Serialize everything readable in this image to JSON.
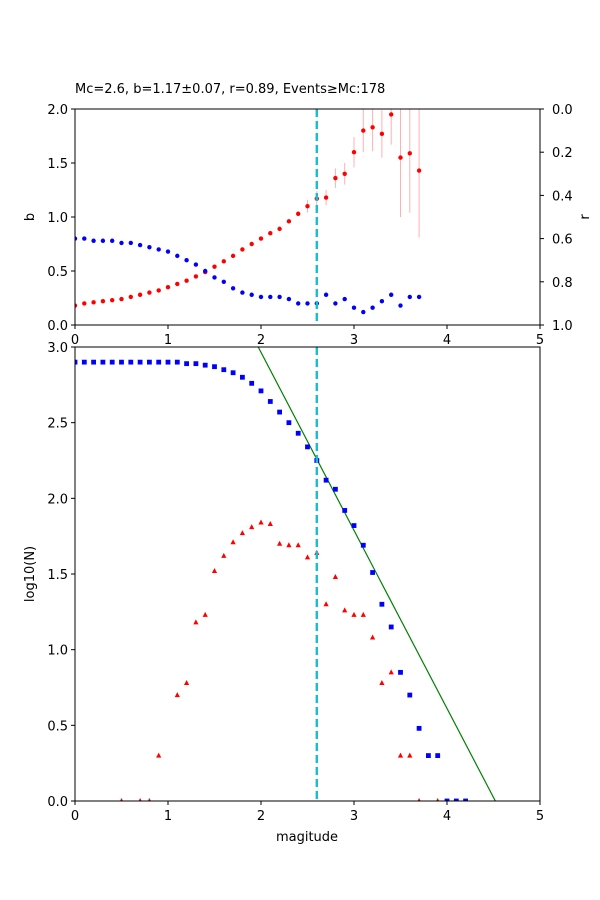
{
  "chart_data": [
    {
      "type": "scatter",
      "title": "Mc=2.6, b=1.17±0.07, r=0.89, Events≥Mc:178",
      "xlabel": "",
      "ylabel": "b",
      "ylabel_right": "r",
      "xlim": [
        0,
        5
      ],
      "ylim": [
        0,
        2
      ],
      "ylim_right": [
        1,
        0
      ],
      "x_ticks": [
        "0",
        "1",
        "2",
        "3",
        "4",
        "5"
      ],
      "y_ticks": [
        "0.0",
        "0.5",
        "1.0",
        "1.5",
        "2.0"
      ],
      "y_right_ticks": [
        "0.0",
        "0.2",
        "0.4",
        "0.6",
        "0.8",
        "1.0"
      ],
      "grid": false,
      "mc_line": 2.6,
      "colors": {
        "b_series": "#ff0000",
        "r_series": "#0000ff",
        "errorbar": "#ffb0b0",
        "mc_line": "#17becf"
      },
      "series": [
        {
          "axis": "left",
          "marker": "circle",
          "color": "#ff0000",
          "points": [
            [
              0.0,
              0.18
            ],
            [
              0.1,
              0.2
            ],
            [
              0.2,
              0.21
            ],
            [
              0.3,
              0.22
            ],
            [
              0.4,
              0.23
            ],
            [
              0.5,
              0.24
            ],
            [
              0.6,
              0.26
            ],
            [
              0.7,
              0.28
            ],
            [
              0.8,
              0.3
            ],
            [
              0.9,
              0.32
            ],
            [
              1.0,
              0.35
            ],
            [
              1.1,
              0.38
            ],
            [
              1.2,
              0.41
            ],
            [
              1.3,
              0.45
            ],
            [
              1.4,
              0.49
            ],
            [
              1.5,
              0.54
            ],
            [
              1.6,
              0.59
            ],
            [
              1.7,
              0.64
            ],
            [
              1.8,
              0.7
            ],
            [
              1.9,
              0.75
            ],
            [
              2.0,
              0.8
            ],
            [
              2.1,
              0.85
            ],
            [
              2.2,
              0.89
            ],
            [
              2.3,
              0.96
            ],
            [
              2.4,
              1.03
            ],
            [
              2.5,
              1.1
            ],
            [
              2.6,
              1.17
            ],
            [
              2.7,
              1.18
            ],
            [
              2.8,
              1.36
            ],
            [
              2.9,
              1.4
            ],
            [
              3.0,
              1.6
            ],
            [
              3.1,
              1.8
            ],
            [
              3.2,
              1.83
            ],
            [
              3.3,
              1.77
            ],
            [
              3.4,
              1.95
            ],
            [
              3.5,
              1.55
            ],
            [
              3.6,
              1.59
            ],
            [
              3.7,
              1.43
            ]
          ],
          "errors": [
            [
              2.5,
              0.06
            ],
            [
              2.6,
              0.07
            ],
            [
              2.7,
              0.07
            ],
            [
              2.8,
              0.09
            ],
            [
              2.9,
              0.1
            ],
            [
              3.0,
              0.14
            ],
            [
              3.1,
              0.2
            ],
            [
              3.2,
              0.22
            ],
            [
              3.3,
              0.22
            ],
            [
              3.4,
              0.28
            ],
            [
              3.5,
              0.55
            ],
            [
              3.6,
              0.55
            ],
            [
              3.7,
              0.62
            ]
          ]
        },
        {
          "axis": "right",
          "marker": "circle",
          "color": "#0000ff",
          "points": [
            [
              0.0,
              0.6
            ],
            [
              0.1,
              0.6
            ],
            [
              0.2,
              0.61
            ],
            [
              0.3,
              0.61
            ],
            [
              0.4,
              0.61
            ],
            [
              0.5,
              0.62
            ],
            [
              0.6,
              0.62
            ],
            [
              0.7,
              0.63
            ],
            [
              0.8,
              0.64
            ],
            [
              0.9,
              0.65
            ],
            [
              1.0,
              0.66
            ],
            [
              1.1,
              0.68
            ],
            [
              1.2,
              0.7
            ],
            [
              1.3,
              0.72
            ],
            [
              1.4,
              0.75
            ],
            [
              1.5,
              0.78
            ],
            [
              1.6,
              0.8
            ],
            [
              1.7,
              0.83
            ],
            [
              1.8,
              0.85
            ],
            [
              1.9,
              0.86
            ],
            [
              2.0,
              0.87
            ],
            [
              2.1,
              0.87
            ],
            [
              2.2,
              0.87
            ],
            [
              2.3,
              0.88
            ],
            [
              2.4,
              0.9
            ],
            [
              2.5,
              0.9
            ],
            [
              2.6,
              0.9
            ],
            [
              2.7,
              0.86
            ],
            [
              2.8,
              0.9
            ],
            [
              2.9,
              0.88
            ],
            [
              3.0,
              0.92
            ],
            [
              3.1,
              0.94
            ],
            [
              3.2,
              0.92
            ],
            [
              3.3,
              0.89
            ],
            [
              3.4,
              0.86
            ],
            [
              3.5,
              0.91
            ],
            [
              3.6,
              0.87
            ],
            [
              3.7,
              0.87
            ]
          ]
        }
      ]
    },
    {
      "type": "scatter",
      "title": "",
      "xlabel": "magitude",
      "ylabel": "log10(N)",
      "xlim": [
        0,
        5
      ],
      "ylim": [
        0,
        3
      ],
      "x_ticks": [
        "0",
        "1",
        "2",
        "3",
        "4",
        "5"
      ],
      "y_ticks": [
        "0.0",
        "0.5",
        "1.0",
        "1.5",
        "2.0",
        "2.5",
        "3.0"
      ],
      "grid": false,
      "mc_line": 2.6,
      "fit_line": {
        "color": "#008000",
        "points": [
          [
            1.97,
            3.0
          ],
          [
            4.52,
            0.0
          ]
        ]
      },
      "colors": {
        "cumulative": "#0000ff",
        "noncumulative": "#ff0000",
        "mc_line": "#17becf",
        "fit": "#008000"
      },
      "series": [
        {
          "marker": "square",
          "color": "#0000ff",
          "points": [
            [
              0.0,
              2.9
            ],
            [
              0.1,
              2.9
            ],
            [
              0.2,
              2.9
            ],
            [
              0.3,
              2.9
            ],
            [
              0.4,
              2.9
            ],
            [
              0.5,
              2.9
            ],
            [
              0.6,
              2.9
            ],
            [
              0.7,
              2.9
            ],
            [
              0.8,
              2.9
            ],
            [
              0.9,
              2.9
            ],
            [
              1.0,
              2.9
            ],
            [
              1.1,
              2.9
            ],
            [
              1.2,
              2.89
            ],
            [
              1.3,
              2.89
            ],
            [
              1.4,
              2.88
            ],
            [
              1.5,
              2.87
            ],
            [
              1.6,
              2.85
            ],
            [
              1.7,
              2.83
            ],
            [
              1.8,
              2.8
            ],
            [
              1.9,
              2.76
            ],
            [
              2.0,
              2.71
            ],
            [
              2.1,
              2.64
            ],
            [
              2.2,
              2.57
            ],
            [
              2.3,
              2.5
            ],
            [
              2.4,
              2.43
            ],
            [
              2.5,
              2.34
            ],
            [
              2.6,
              2.25
            ],
            [
              2.7,
              2.12
            ],
            [
              2.8,
              2.06
            ],
            [
              2.9,
              1.92
            ],
            [
              3.0,
              1.82
            ],
            [
              3.1,
              1.69
            ],
            [
              3.2,
              1.51
            ],
            [
              3.3,
              1.3
            ],
            [
              3.4,
              1.15
            ],
            [
              3.5,
              0.85
            ],
            [
              3.6,
              0.7
            ],
            [
              3.7,
              0.48
            ],
            [
              3.8,
              0.3
            ],
            [
              3.9,
              0.3
            ],
            [
              4.0,
              0.0
            ],
            [
              4.1,
              0.0
            ],
            [
              4.2,
              0.0
            ]
          ]
        },
        {
          "marker": "triangle",
          "color": "#ff0000",
          "points": [
            [
              0.5,
              0.0
            ],
            [
              0.7,
              0.0
            ],
            [
              0.8,
              0.0
            ],
            [
              0.9,
              0.3
            ],
            [
              1.1,
              0.7
            ],
            [
              1.2,
              0.78
            ],
            [
              1.3,
              1.18
            ],
            [
              1.4,
              1.23
            ],
            [
              1.5,
              1.52
            ],
            [
              1.6,
              1.62
            ],
            [
              1.7,
              1.71
            ],
            [
              1.8,
              1.77
            ],
            [
              1.9,
              1.81
            ],
            [
              2.0,
              1.84
            ],
            [
              2.1,
              1.83
            ],
            [
              2.2,
              1.7
            ],
            [
              2.3,
              1.69
            ],
            [
              2.4,
              1.69
            ],
            [
              2.5,
              1.61
            ],
            [
              2.6,
              1.64
            ],
            [
              2.7,
              1.3
            ],
            [
              2.8,
              1.48
            ],
            [
              2.9,
              1.26
            ],
            [
              3.0,
              1.23
            ],
            [
              3.1,
              1.23
            ],
            [
              3.2,
              1.08
            ],
            [
              3.3,
              0.78
            ],
            [
              3.4,
              0.85
            ],
            [
              3.5,
              0.3
            ],
            [
              3.6,
              0.3
            ],
            [
              3.7,
              0.0
            ],
            [
              3.9,
              0.0
            ]
          ]
        }
      ]
    }
  ]
}
